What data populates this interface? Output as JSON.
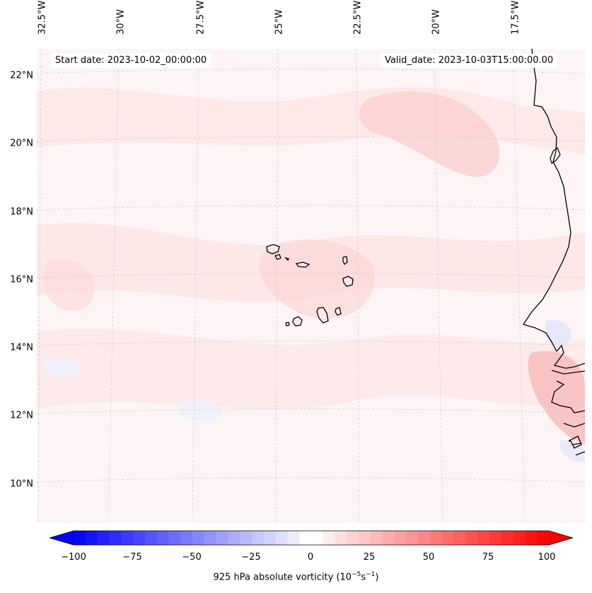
{
  "map": {
    "start_date": "Start date: 2023-10-02_00:00:00",
    "valid_date": "Valid_date: 2023-10-03T15:00:00.00",
    "lon_labels": [
      "32.5°W",
      "30°W",
      "27.5°W",
      "25°W",
      "22.5°W",
      "20°W",
      "17.5°W"
    ],
    "lat_labels": [
      "22°N",
      "20°N",
      "18°N",
      "16°N",
      "14°N",
      "12°N",
      "10°N"
    ],
    "field": "925 hPa absolute vorticity",
    "features": [
      "Cabo Verde islands",
      "West African coastline"
    ]
  },
  "colorbar": {
    "ticks": [
      "−100",
      "−75",
      "−50",
      "−25",
      "0",
      "25",
      "50",
      "75",
      "100"
    ],
    "title": "925 hPa absolute vorticity (10",
    "title_exp1": "−5",
    "title_mid": "s",
    "title_exp2": "−1",
    "title_end": ")",
    "min": -100,
    "max": 100,
    "step": 5,
    "low_color": "#0000ff",
    "zero_color": "#ffffff",
    "high_color": "#ff0000"
  }
}
